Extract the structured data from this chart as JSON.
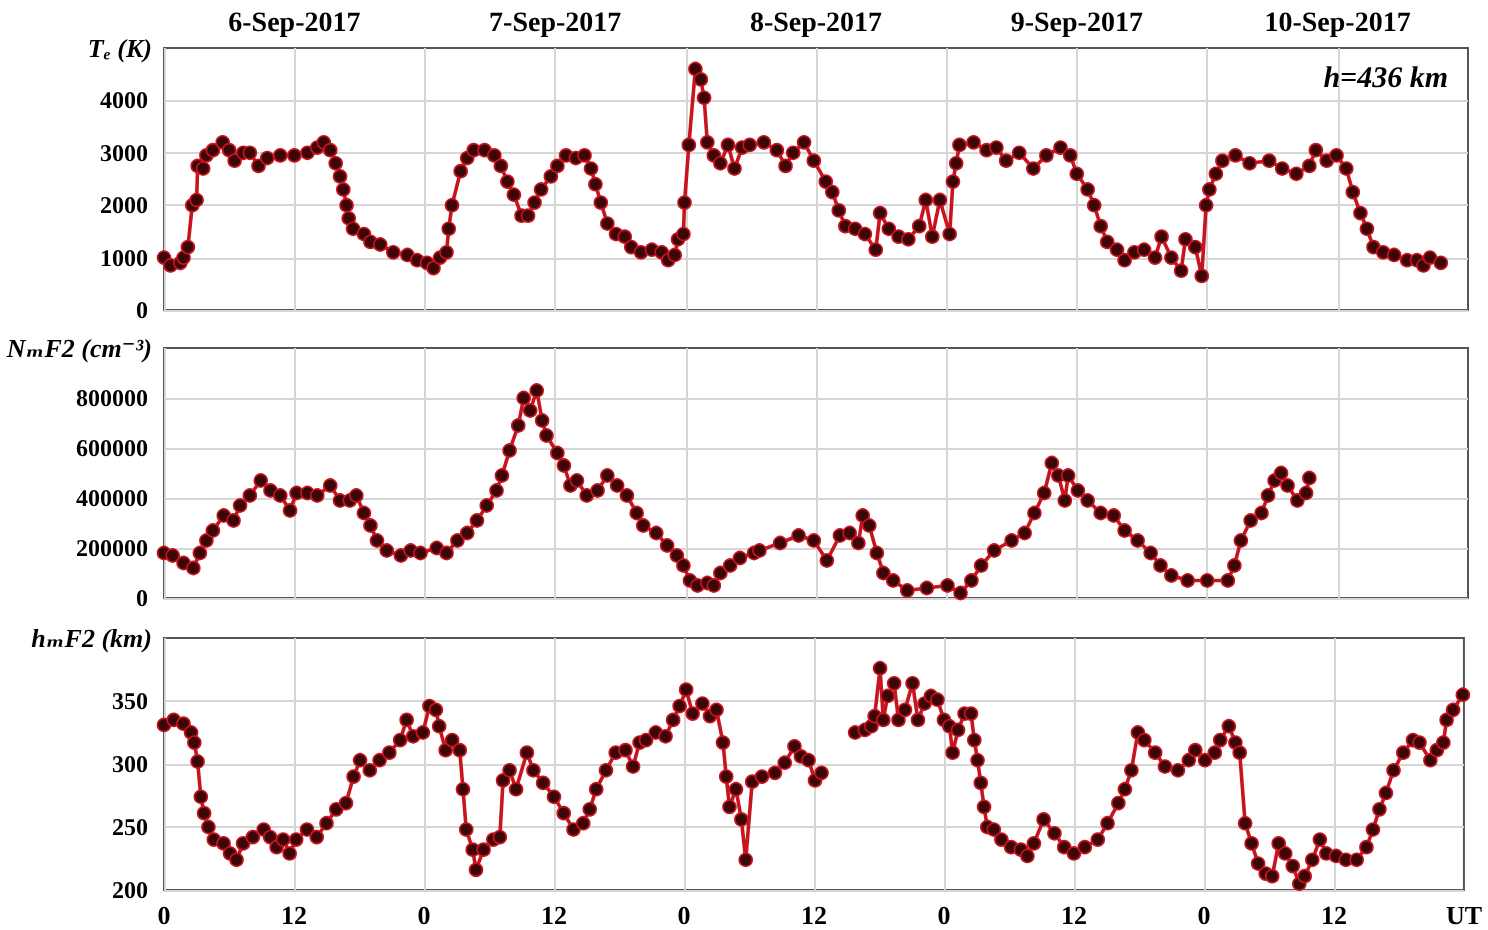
{
  "chart_data": [
    {
      "type": "line",
      "ylabel": "Tₑ (K)",
      "annotations": [
        "h=436 km"
      ],
      "xlim": [
        "2017-09-06T00:00",
        "2017-09-11T00:00"
      ],
      "xticks": [
        {
          "value": "2017-09-06T00:00",
          "label": null
        },
        {
          "value": "2017-09-06T12:00",
          "label": null
        },
        {
          "value": "2017-09-07T00:00",
          "label": null
        },
        {
          "value": "2017-09-07T12:00",
          "label": null
        },
        {
          "value": "2017-09-08T00:00",
          "label": null
        },
        {
          "value": "2017-09-08T12:00",
          "label": null
        },
        {
          "value": "2017-09-09T00:00",
          "label": null
        },
        {
          "value": "2017-09-09T12:00",
          "label": null
        },
        {
          "value": "2017-09-10T00:00",
          "label": null
        },
        {
          "value": "2017-09-10T12:00",
          "label": null
        }
      ],
      "x2lim": [
        "2017-09-06T00:00",
        "2017-09-11T00:00"
      ],
      "x2ticks": [
        {
          "value": "2017-09-06T12:00",
          "label": "6-Sep-2017"
        },
        {
          "value": "2017-09-07T12:00",
          "label": "7-Sep-2017"
        },
        {
          "value": "2017-09-08T12:00",
          "label": "8-Sep-2017"
        },
        {
          "value": "2017-09-09T12:00",
          "label": "9-Sep-2017"
        },
        {
          "value": "2017-09-10T12:00",
          "label": "10-Sep-2017"
        }
      ],
      "ylim": [
        0,
        5000
      ],
      "yticks": [
        0,
        1000,
        2000,
        3000,
        4000
      ],
      "grid": true,
      "marker": "circle",
      "line_style": "solid",
      "tick_labels": "y",
      "series": [
        {
          "color": "#c8141e",
          "x": [
            "2017-09-06T00:00",
            "2017-09-06T00:36",
            "2017-09-06T01:30",
            "2017-09-06T01:48",
            "2017-09-06T02:12",
            "2017-09-06T02:36",
            "2017-09-06T03:00",
            "2017-09-06T03:06",
            "2017-09-06T03:36",
            "2017-09-06T03:54",
            "2017-09-06T04:30",
            "2017-09-06T05:24",
            "2017-09-06T06:00",
            "2017-09-06T06:30",
            "2017-09-06T07:18",
            "2017-09-06T07:54",
            "2017-09-06T08:42",
            "2017-09-06T09:30",
            "2017-09-06T10:42",
            "2017-09-06T12:00",
            "2017-09-06T13:12",
            "2017-09-06T14:06",
            "2017-09-06T14:42",
            "2017-09-06T15:18",
            "2017-09-06T15:48",
            "2017-09-06T16:12",
            "2017-09-06T16:30",
            "2017-09-06T16:48",
            "2017-09-06T17:00",
            "2017-09-06T17:24",
            "2017-09-06T18:24",
            "2017-09-06T19:00",
            "2017-09-06T19:54",
            "2017-09-06T21:06",
            "2017-09-06T22:24",
            "2017-09-06T23:18",
            "2017-09-07T00:12",
            "2017-09-07T00:48",
            "2017-09-07T01:24",
            "2017-09-07T02:00",
            "2017-09-07T02:12",
            "2017-09-07T02:30",
            "2017-09-07T03:18",
            "2017-09-07T03:54",
            "2017-09-07T04:30",
            "2017-09-07T05:30",
            "2017-09-07T06:24",
            "2017-09-07T07:00",
            "2017-09-07T07:36",
            "2017-09-07T08:12",
            "2017-09-07T08:54",
            "2017-09-07T09:30",
            "2017-09-07T10:06",
            "2017-09-07T10:42",
            "2017-09-07T11:36",
            "2017-09-07T12:12",
            "2017-09-07T13:00",
            "2017-09-07T13:54",
            "2017-09-07T14:42",
            "2017-09-07T15:18",
            "2017-09-07T15:42",
            "2017-09-07T16:12",
            "2017-09-07T16:48",
            "2017-09-07T17:36",
            "2017-09-07T18:24",
            "2017-09-07T19:00",
            "2017-09-07T19:54",
            "2017-09-07T20:54",
            "2017-09-07T21:48",
            "2017-09-07T22:24",
            "2017-09-07T23:00",
            "2017-09-07T23:18",
            "2017-09-07T23:48",
            "2017-09-07T23:54",
            "2017-09-08T00:18",
            "2017-09-08T00:54",
            "2017-09-08T01:24",
            "2017-09-08T01:42",
            "2017-09-08T02:00",
            "2017-09-08T02:36",
            "2017-09-08T03:12",
            "2017-09-08T03:54",
            "2017-09-08T04:30",
            "2017-09-08T05:12",
            "2017-09-08T05:54",
            "2017-09-08T07:12",
            "2017-09-08T08:24",
            "2017-09-08T09:12",
            "2017-09-08T09:54",
            "2017-09-08T10:54",
            "2017-09-08T11:48",
            "2017-09-08T12:54",
            "2017-09-08T13:30",
            "2017-09-08T14:06",
            "2017-09-08T14:42",
            "2017-09-08T15:36",
            "2017-09-08T16:30",
            "2017-09-08T17:30",
            "2017-09-08T17:54",
            "2017-09-08T18:42",
            "2017-09-08T19:36",
            "2017-09-08T20:30",
            "2017-09-08T21:30",
            "2017-09-08T22:06",
            "2017-09-08T22:42",
            "2017-09-08T23:24",
            "2017-09-09T00:18",
            "2017-09-09T00:36",
            "2017-09-09T00:54",
            "2017-09-09T01:12",
            "2017-09-09T02:30",
            "2017-09-09T03:42",
            "2017-09-09T04:36",
            "2017-09-09T05:30",
            "2017-09-09T06:42",
            "2017-09-09T08:00",
            "2017-09-09T09:12",
            "2017-09-09T10:30",
            "2017-09-09T11:24",
            "2017-09-09T12:00",
            "2017-09-09T13:00",
            "2017-09-09T13:36",
            "2017-09-09T14:12",
            "2017-09-09T14:48",
            "2017-09-09T15:42",
            "2017-09-09T16:24",
            "2017-09-09T17:18",
            "2017-09-09T18:12",
            "2017-09-09T19:12",
            "2017-09-09T19:48",
            "2017-09-09T20:42",
            "2017-09-09T21:36",
            "2017-09-09T22:00",
            "2017-09-09T22:54",
            "2017-09-09T23:30",
            "2017-09-09T23:54",
            "2017-09-10T00:12",
            "2017-09-10T00:48",
            "2017-09-10T01:24",
            "2017-09-10T02:36",
            "2017-09-10T03:54",
            "2017-09-10T05:42",
            "2017-09-10T06:54",
            "2017-09-10T08:12",
            "2017-09-10T09:24",
            "2017-09-10T10:00",
            "2017-09-10T11:00",
            "2017-09-10T11:54",
            "2017-09-10T12:48",
            "2017-09-10T13:24",
            "2017-09-10T14:06",
            "2017-09-10T14:42",
            "2017-09-10T15:18",
            "2017-09-10T16:12",
            "2017-09-10T17:12",
            "2017-09-10T18:24",
            "2017-09-10T19:18",
            "2017-09-10T19:54",
            "2017-09-10T20:30",
            "2017-09-10T21:30"
          ],
          "values": [
            1000,
            850,
            900,
            1000,
            1200,
            2000,
            2100,
            2750,
            2700,
            2950,
            3050,
            3200,
            3050,
            2850,
            3000,
            3000,
            2750,
            2900,
            2950,
            2950,
            3000,
            3100,
            3200,
            3050,
            2800,
            2550,
            2300,
            2000,
            1750,
            1550,
            1450,
            1300,
            1250,
            1100,
            1050,
            950,
            900,
            800,
            1000,
            1100,
            1550,
            2000,
            2650,
            2900,
            3050,
            3050,
            2950,
            2750,
            2450,
            2200,
            1800,
            1800,
            2050,
            2300,
            2550,
            2750,
            2950,
            2900,
            2950,
            2700,
            2400,
            2050,
            1650,
            1450,
            1400,
            1200,
            1100,
            1150,
            1100,
            950,
            1050,
            1350,
            1450,
            2050,
            3150,
            4600,
            4400,
            4050,
            3200,
            2950,
            2800,
            3150,
            2700,
            3100,
            3150,
            3200,
            3050,
            2750,
            3000,
            3200,
            2850,
            2450,
            2250,
            1900,
            1600,
            1550,
            1450,
            1150,
            1850,
            1550,
            1400,
            1350,
            1600,
            2100,
            1400,
            2100,
            1450,
            2450,
            2800,
            3150,
            3200,
            3050,
            3100,
            2850,
            3000,
            2700,
            2950,
            3100,
            2950,
            2600,
            2300,
            2000,
            1600,
            1300,
            1150,
            950,
            1100,
            1150,
            1000,
            1400,
            1000,
            750,
            1350,
            1200,
            650,
            2000,
            2300,
            2600,
            2850,
            2950,
            2800,
            2850,
            2700,
            2600,
            2750,
            3050,
            2850,
            2950,
            2700,
            2250,
            1850,
            1550,
            1200,
            1100,
            1050,
            950,
            950,
            850,
            1000,
            900
          ]
        }
      ]
    },
    {
      "type": "line",
      "ylabel": "NₘF2 (cm⁻³)",
      "xlim": [
        "2017-09-06T00:00",
        "2017-09-11T00:00"
      ],
      "xticks": [
        {
          "value": "2017-09-06T00:00",
          "label": null
        },
        {
          "value": "2017-09-06T12:00",
          "label": null
        },
        {
          "value": "2017-09-07T00:00",
          "label": null
        },
        {
          "value": "2017-09-07T12:00",
          "label": null
        },
        {
          "value": "2017-09-08T00:00",
          "label": null
        },
        {
          "value": "2017-09-08T12:00",
          "label": null
        },
        {
          "value": "2017-09-09T00:00",
          "label": null
        },
        {
          "value": "2017-09-09T12:00",
          "label": null
        },
        {
          "value": "2017-09-10T00:00",
          "label": null
        },
        {
          "value": "2017-09-10T12:00",
          "label": null
        }
      ],
      "ylim": [
        0,
        1000000
      ],
      "yticks": [
        0,
        200000,
        400000,
        600000,
        800000
      ],
      "grid": true,
      "marker": "circle",
      "line_style": "solid",
      "tick_labels": "y",
      "series": [
        {
          "color": "#c8141e",
          "x": [
            "2017-09-06T00:00",
            "2017-09-06T00:48",
            "2017-09-06T01:48",
            "2017-09-06T02:42",
            "2017-09-06T03:18",
            "2017-09-06T03:54",
            "2017-09-06T04:30",
            "2017-09-06T05:30",
            "2017-09-06T06:24",
            "2017-09-06T07:00",
            "2017-09-06T07:54",
            "2017-09-06T08:54",
            "2017-09-06T09:48",
            "2017-09-06T10:42",
            "2017-09-06T11:36",
            "2017-09-06T12:12",
            "2017-09-06T13:12",
            "2017-09-06T14:06",
            "2017-09-06T15:18",
            "2017-09-06T16:12",
            "2017-09-06T17:06",
            "2017-09-06T17:42",
            "2017-09-06T18:24",
            "2017-09-06T19:00",
            "2017-09-06T19:36",
            "2017-09-06T20:30",
            "2017-09-06T21:48",
            "2017-09-06T22:42",
            "2017-09-06T23:36",
            "2017-09-07T01:06",
            "2017-09-07T02:00",
            "2017-09-07T03:00",
            "2017-09-07T03:54",
            "2017-09-07T04:48",
            "2017-09-07T05:42",
            "2017-09-07T06:36",
            "2017-09-07T07:06",
            "2017-09-07T07:48",
            "2017-09-07T08:36",
            "2017-09-07T09:06",
            "2017-09-07T09:42",
            "2017-09-07T10:18",
            "2017-09-07T10:48",
            "2017-09-07T11:12",
            "2017-09-07T12:12",
            "2017-09-07T12:48",
            "2017-09-07T13:24",
            "2017-09-07T14:00",
            "2017-09-07T14:54",
            "2017-09-07T15:54",
            "2017-09-07T16:48",
            "2017-09-07T17:42",
            "2017-09-07T18:36",
            "2017-09-07T19:30",
            "2017-09-07T20:06",
            "2017-09-07T21:18",
            "2017-09-07T22:18",
            "2017-09-07T23:12",
            "2017-09-07T23:48",
            "2017-09-08T00:24",
            "2017-09-08T01:06",
            "2017-09-08T02:00",
            "2017-09-08T02:36",
            "2017-09-08T03:12",
            "2017-09-08T04:06",
            "2017-09-08T05:00",
            "2017-09-08T06:18",
            "2017-09-08T06:48",
            "2017-09-08T08:42",
            "2017-09-08T10:24",
            "2017-09-08T11:48",
            "2017-09-08T13:00",
            "2017-09-08T14:12",
            "2017-09-08T15:06",
            "2017-09-08T15:54",
            "2017-09-08T16:18",
            "2017-09-08T16:54",
            "2017-09-08T17:36",
            "2017-09-08T18:12",
            "2017-09-08T19:06",
            "2017-09-08T20:24",
            "2017-09-08T22:12",
            "2017-09-09T00:06",
            "2017-09-09T01:18",
            "2017-09-09T02:18",
            "2017-09-09T03:12",
            "2017-09-09T04:24",
            "2017-09-09T06:00",
            "2017-09-09T07:12",
            "2017-09-09T08:06",
            "2017-09-09T09:00",
            "2017-09-09T09:42",
            "2017-09-09T10:18",
            "2017-09-09T10:54",
            "2017-09-09T11:12",
            "2017-09-09T12:06",
            "2017-09-09T13:00",
            "2017-09-09T14:12",
            "2017-09-09T15:24",
            "2017-09-09T16:24",
            "2017-09-09T17:36",
            "2017-09-09T18:48",
            "2017-09-09T19:42",
            "2017-09-09T20:42",
            "2017-09-09T22:12",
            "2017-09-10T00:00",
            "2017-09-10T01:54",
            "2017-09-10T02:30",
            "2017-09-10T03:06",
            "2017-09-10T04:00",
            "2017-09-10T05:00",
            "2017-09-10T05:36",
            "2017-09-10T06:12",
            "2017-09-10T06:48",
            "2017-09-10T07:24",
            "2017-09-10T08:18",
            "2017-09-10T09:06",
            "2017-09-10T09:24"
          ],
          "values": [
            180000,
            170000,
            140000,
            120000,
            180000,
            230000,
            270000,
            330000,
            310000,
            370000,
            410000,
            470000,
            430000,
            410000,
            350000,
            420000,
            420000,
            410000,
            450000,
            390000,
            390000,
            410000,
            340000,
            290000,
            230000,
            190000,
            170000,
            190000,
            180000,
            200000,
            180000,
            230000,
            260000,
            310000,
            370000,
            430000,
            490000,
            590000,
            690000,
            800000,
            750000,
            830000,
            710000,
            650000,
            580000,
            530000,
            450000,
            470000,
            410000,
            430000,
            490000,
            450000,
            410000,
            340000,
            290000,
            260000,
            210000,
            170000,
            130000,
            70000,
            50000,
            60000,
            50000,
            100000,
            130000,
            160000,
            180000,
            190000,
            220000,
            250000,
            230000,
            150000,
            250000,
            260000,
            220000,
            330000,
            290000,
            180000,
            100000,
            70000,
            30000,
            40000,
            50000,
            20000,
            70000,
            130000,
            190000,
            230000,
            260000,
            340000,
            420000,
            540000,
            490000,
            390000,
            490000,
            430000,
            390000,
            340000,
            330000,
            270000,
            230000,
            180000,
            130000,
            90000,
            70000,
            70000,
            70000,
            130000,
            230000,
            310000,
            340000,
            410000,
            470000,
            500000,
            450000,
            390000,
            420000,
            480000
          ]
        }
      ]
    },
    {
      "type": "line",
      "ylabel": "hₘF2 (km)",
      "xlabel": "UT",
      "xlim": [
        "2017-09-06T00:00",
        "2017-09-11T00:00"
      ],
      "xticks": [
        {
          "value": "2017-09-06T00:00",
          "label": "0"
        },
        {
          "value": "2017-09-06T12:00",
          "label": "12"
        },
        {
          "value": "2017-09-07T00:00",
          "label": "0"
        },
        {
          "value": "2017-09-07T12:00",
          "label": "12"
        },
        {
          "value": "2017-09-08T00:00",
          "label": "0"
        },
        {
          "value": "2017-09-08T12:00",
          "label": "12"
        },
        {
          "value": "2017-09-09T00:00",
          "label": "0"
        },
        {
          "value": "2017-09-09T12:00",
          "label": "12"
        },
        {
          "value": "2017-09-10T00:00",
          "label": "0"
        },
        {
          "value": "2017-09-10T12:00",
          "label": "12"
        }
      ],
      "ylim": [
        200,
        400
      ],
      "yticks": [
        200,
        250,
        300,
        350
      ],
      "grid": true,
      "marker": "circle",
      "line_style": "solid",
      "series": [
        {
          "color": "#c8141e",
          "x": [
            "2017-09-06T00:00",
            "2017-09-06T00:54",
            "2017-09-06T01:48",
            "2017-09-06T02:30",
            "2017-09-06T02:48",
            "2017-09-06T03:06",
            "2017-09-06T03:24",
            "2017-09-06T03:42",
            "2017-09-06T04:06",
            "2017-09-06T04:36",
            "2017-09-06T05:30",
            "2017-09-06T06:06",
            "2017-09-06T06:42",
            "2017-09-06T07:18",
            "2017-09-06T08:12",
            "2017-09-06T09:12",
            "2017-09-06T09:48",
            "2017-09-06T10:24",
            "2017-09-06T11:00",
            "2017-09-06T11:36",
            "2017-09-06T12:12",
            "2017-09-06T13:12",
            "2017-09-06T14:06",
            "2017-09-06T15:00",
            "2017-09-06T15:54",
            "2017-09-06T16:48",
            "2017-09-06T17:30",
            "2017-09-06T18:06",
            "2017-09-06T19:00",
            "2017-09-06T19:54",
            "2017-09-06T20:48",
            "2017-09-06T21:48",
            "2017-09-06T22:24",
            "2017-09-06T23:00",
            "2017-09-06T23:54",
            "2017-09-07T00:30",
            "2017-09-07T01:06",
            "2017-09-07T01:24",
            "2017-09-07T02:00",
            "2017-09-07T02:36",
            "2017-09-07T03:18",
            "2017-09-07T03:36",
            "2017-09-07T03:54",
            "2017-09-07T04:30",
            "2017-09-07T04:48",
            "2017-09-07T05:30",
            "2017-09-07T06:24",
            "2017-09-07T07:00",
            "2017-09-07T07:18",
            "2017-09-07T07:54",
            "2017-09-07T08:30",
            "2017-09-07T09:30",
            "2017-09-07T10:06",
            "2017-09-07T11:00",
            "2017-09-07T12:00",
            "2017-09-07T12:54",
            "2017-09-07T13:48",
            "2017-09-07T14:42",
            "2017-09-07T15:18",
            "2017-09-07T15:54",
            "2017-09-07T16:48",
            "2017-09-07T17:42",
            "2017-09-07T18:36",
            "2017-09-07T19:18",
            "2017-09-07T19:54",
            "2017-09-07T20:30",
            "2017-09-07T21:24",
            "2017-09-07T22:18",
            "2017-09-07T23:00",
            "2017-09-07T23:36",
            "2017-09-08T00:12",
            "2017-09-08T00:48",
            "2017-09-08T01:42",
            "2017-09-08T02:24",
            "2017-09-08T03:00",
            "2017-09-08T03:36",
            "2017-09-08T03:54",
            "2017-09-08T04:12",
            "2017-09-08T04:48",
            "2017-09-08T05:18",
            "2017-09-08T05:42",
            "2017-09-08T06:18",
            "2017-09-08T07:12",
            "2017-09-08T08:24",
            "2017-09-08T09:18",
            "2017-09-08T10:12",
            "2017-09-08T10:48",
            "2017-09-08T11:30",
            "2017-09-08T12:06",
            "2017-09-08T12:42",
            "2017-09-08T14:12",
            "2017-09-08T15:48",
            "2017-09-08T16:42",
            "2017-09-08T17:18",
            "2017-09-08T17:36",
            "2017-09-08T18:06",
            "2017-09-08T18:24",
            "2017-09-08T18:48",
            "2017-09-08T19:24",
            "2017-09-08T19:48",
            "2017-09-08T20:24",
            "2017-09-08T21:06",
            "2017-09-08T21:36",
            "2017-09-08T22:12",
            "2017-09-08T22:48",
            "2017-09-08T23:24",
            "2017-09-09T00:00",
            "2017-09-09T00:30",
            "2017-09-09T00:48",
            "2017-09-09T01:18",
            "2017-09-09T01:54",
            "2017-09-09T02:30",
            "2017-09-09T02:48",
            "2017-09-09T03:06",
            "2017-09-09T03:24",
            "2017-09-09T03:42",
            "2017-09-09T04:00",
            "2017-09-09T04:36",
            "2017-09-09T05:18",
            "2017-09-09T06:12",
            "2017-09-09T07:06",
            "2017-09-09T07:42",
            "2017-09-09T08:18",
            "2017-09-09T09:12",
            "2017-09-09T10:12",
            "2017-09-09T11:06",
            "2017-09-09T12:00",
            "2017-09-09T13:00",
            "2017-09-09T14:12",
            "2017-09-09T15:06",
            "2017-09-09T16:06",
            "2017-09-09T16:42",
            "2017-09-09T17:18",
            "2017-09-09T17:54",
            "2017-09-09T18:30",
            "2017-09-09T19:30",
            "2017-09-09T20:24",
            "2017-09-09T21:36",
            "2017-09-09T22:36",
            "2017-09-09T23:12",
            "2017-09-10T00:06",
            "2017-09-10T01:00",
            "2017-09-10T01:30",
            "2017-09-10T02:18",
            "2017-09-10T02:54",
            "2017-09-10T03:18",
            "2017-09-10T03:48",
            "2017-09-10T04:24",
            "2017-09-10T05:00",
            "2017-09-10T05:42",
            "2017-09-10T06:18",
            "2017-09-10T06:54",
            "2017-09-10T07:30",
            "2017-09-10T08:12",
            "2017-09-10T08:48",
            "2017-09-10T09:18",
            "2017-09-10T10:00",
            "2017-09-10T10:42",
            "2017-09-10T11:18",
            "2017-09-10T12:12",
            "2017-09-10T13:06",
            "2017-09-10T14:06",
            "2017-09-10T15:00",
            "2017-09-10T15:36",
            "2017-09-10T16:12",
            "2017-09-10T16:48",
            "2017-09-10T17:30",
            "2017-09-10T18:24",
            "2017-09-10T19:18",
            "2017-09-10T19:54",
            "2017-09-10T20:54",
            "2017-09-10T21:30",
            "2017-09-10T22:06",
            "2017-09-10T22:24",
            "2017-09-10T23:00",
            "2017-09-10T23:54"
          ],
          "values": [
            331,
            335,
            332,
            325,
            317,
            302,
            274,
            261,
            250,
            240,
            237,
            229,
            224,
            237,
            242,
            248,
            242,
            234,
            240,
            229,
            240,
            248,
            242,
            253,
            264,
            269,
            290,
            303,
            295,
            303,
            309,
            319,
            335,
            322,
            325,
            346,
            343,
            330,
            311,
            319,
            311,
            280,
            248,
            232,
            216,
            232,
            240,
            242,
            287,
            295,
            280,
            309,
            295,
            285,
            274,
            261,
            248,
            253,
            264,
            280,
            295,
            309,
            311,
            298,
            317,
            319,
            325,
            322,
            335,
            346,
            359,
            340,
            348,
            338,
            343,
            317,
            290,
            266,
            280,
            256,
            224,
            286,
            290,
            293,
            301,
            314,
            306,
            303,
            287,
            293,
            null,
            325,
            327,
            330,
            338,
            376,
            335,
            354,
            364,
            335,
            343,
            364,
            335,
            348,
            354,
            351,
            335,
            330,
            309,
            327,
            340,
            340,
            319,
            303,
            285,
            266,
            250,
            248,
            240,
            234,
            232,
            227,
            237,
            256,
            245,
            234,
            229,
            234,
            240,
            253,
            269,
            280,
            295,
            325,
            319,
            309,
            298,
            295,
            303,
            311,
            303,
            309,
            319,
            330,
            317,
            309,
            253,
            237,
            221,
            213,
            211,
            237,
            229,
            219,
            205,
            211,
            224,
            240,
            229,
            227,
            224,
            224,
            234,
            248,
            264,
            277,
            295,
            309,
            319,
            317,
            303,
            311,
            317,
            335,
            343,
            355
          ]
        }
      ]
    }
  ]
}
